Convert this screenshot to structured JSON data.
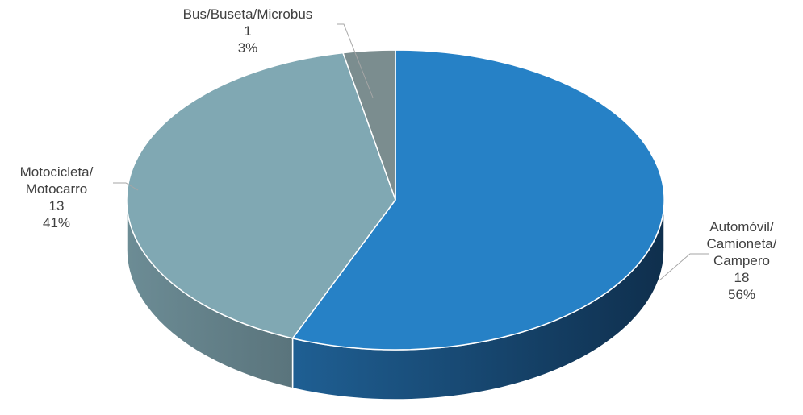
{
  "chart_data": {
    "type": "pie",
    "style": "3d",
    "title": "",
    "slices": [
      {
        "label_lines": [
          "Automóvil/",
          "Camioneta/",
          "Campero"
        ],
        "value": 18,
        "percent_label": "56%",
        "color": "#2681c6",
        "side_color": "#1a527f"
      },
      {
        "label_lines": [
          "Motocicleta/",
          "Motocarro"
        ],
        "value": 13,
        "percent_label": "41%",
        "color": "#80a8b3",
        "side_color": "#5f7e88"
      },
      {
        "label_lines": [
          "Bus/Buseta/Microbus"
        ],
        "value": 1,
        "percent_label": "3%",
        "color": "#7b8d8f",
        "side_color": "#5b6a6c"
      }
    ],
    "legend": "none",
    "leader_line_color": "#a6a6a6"
  }
}
